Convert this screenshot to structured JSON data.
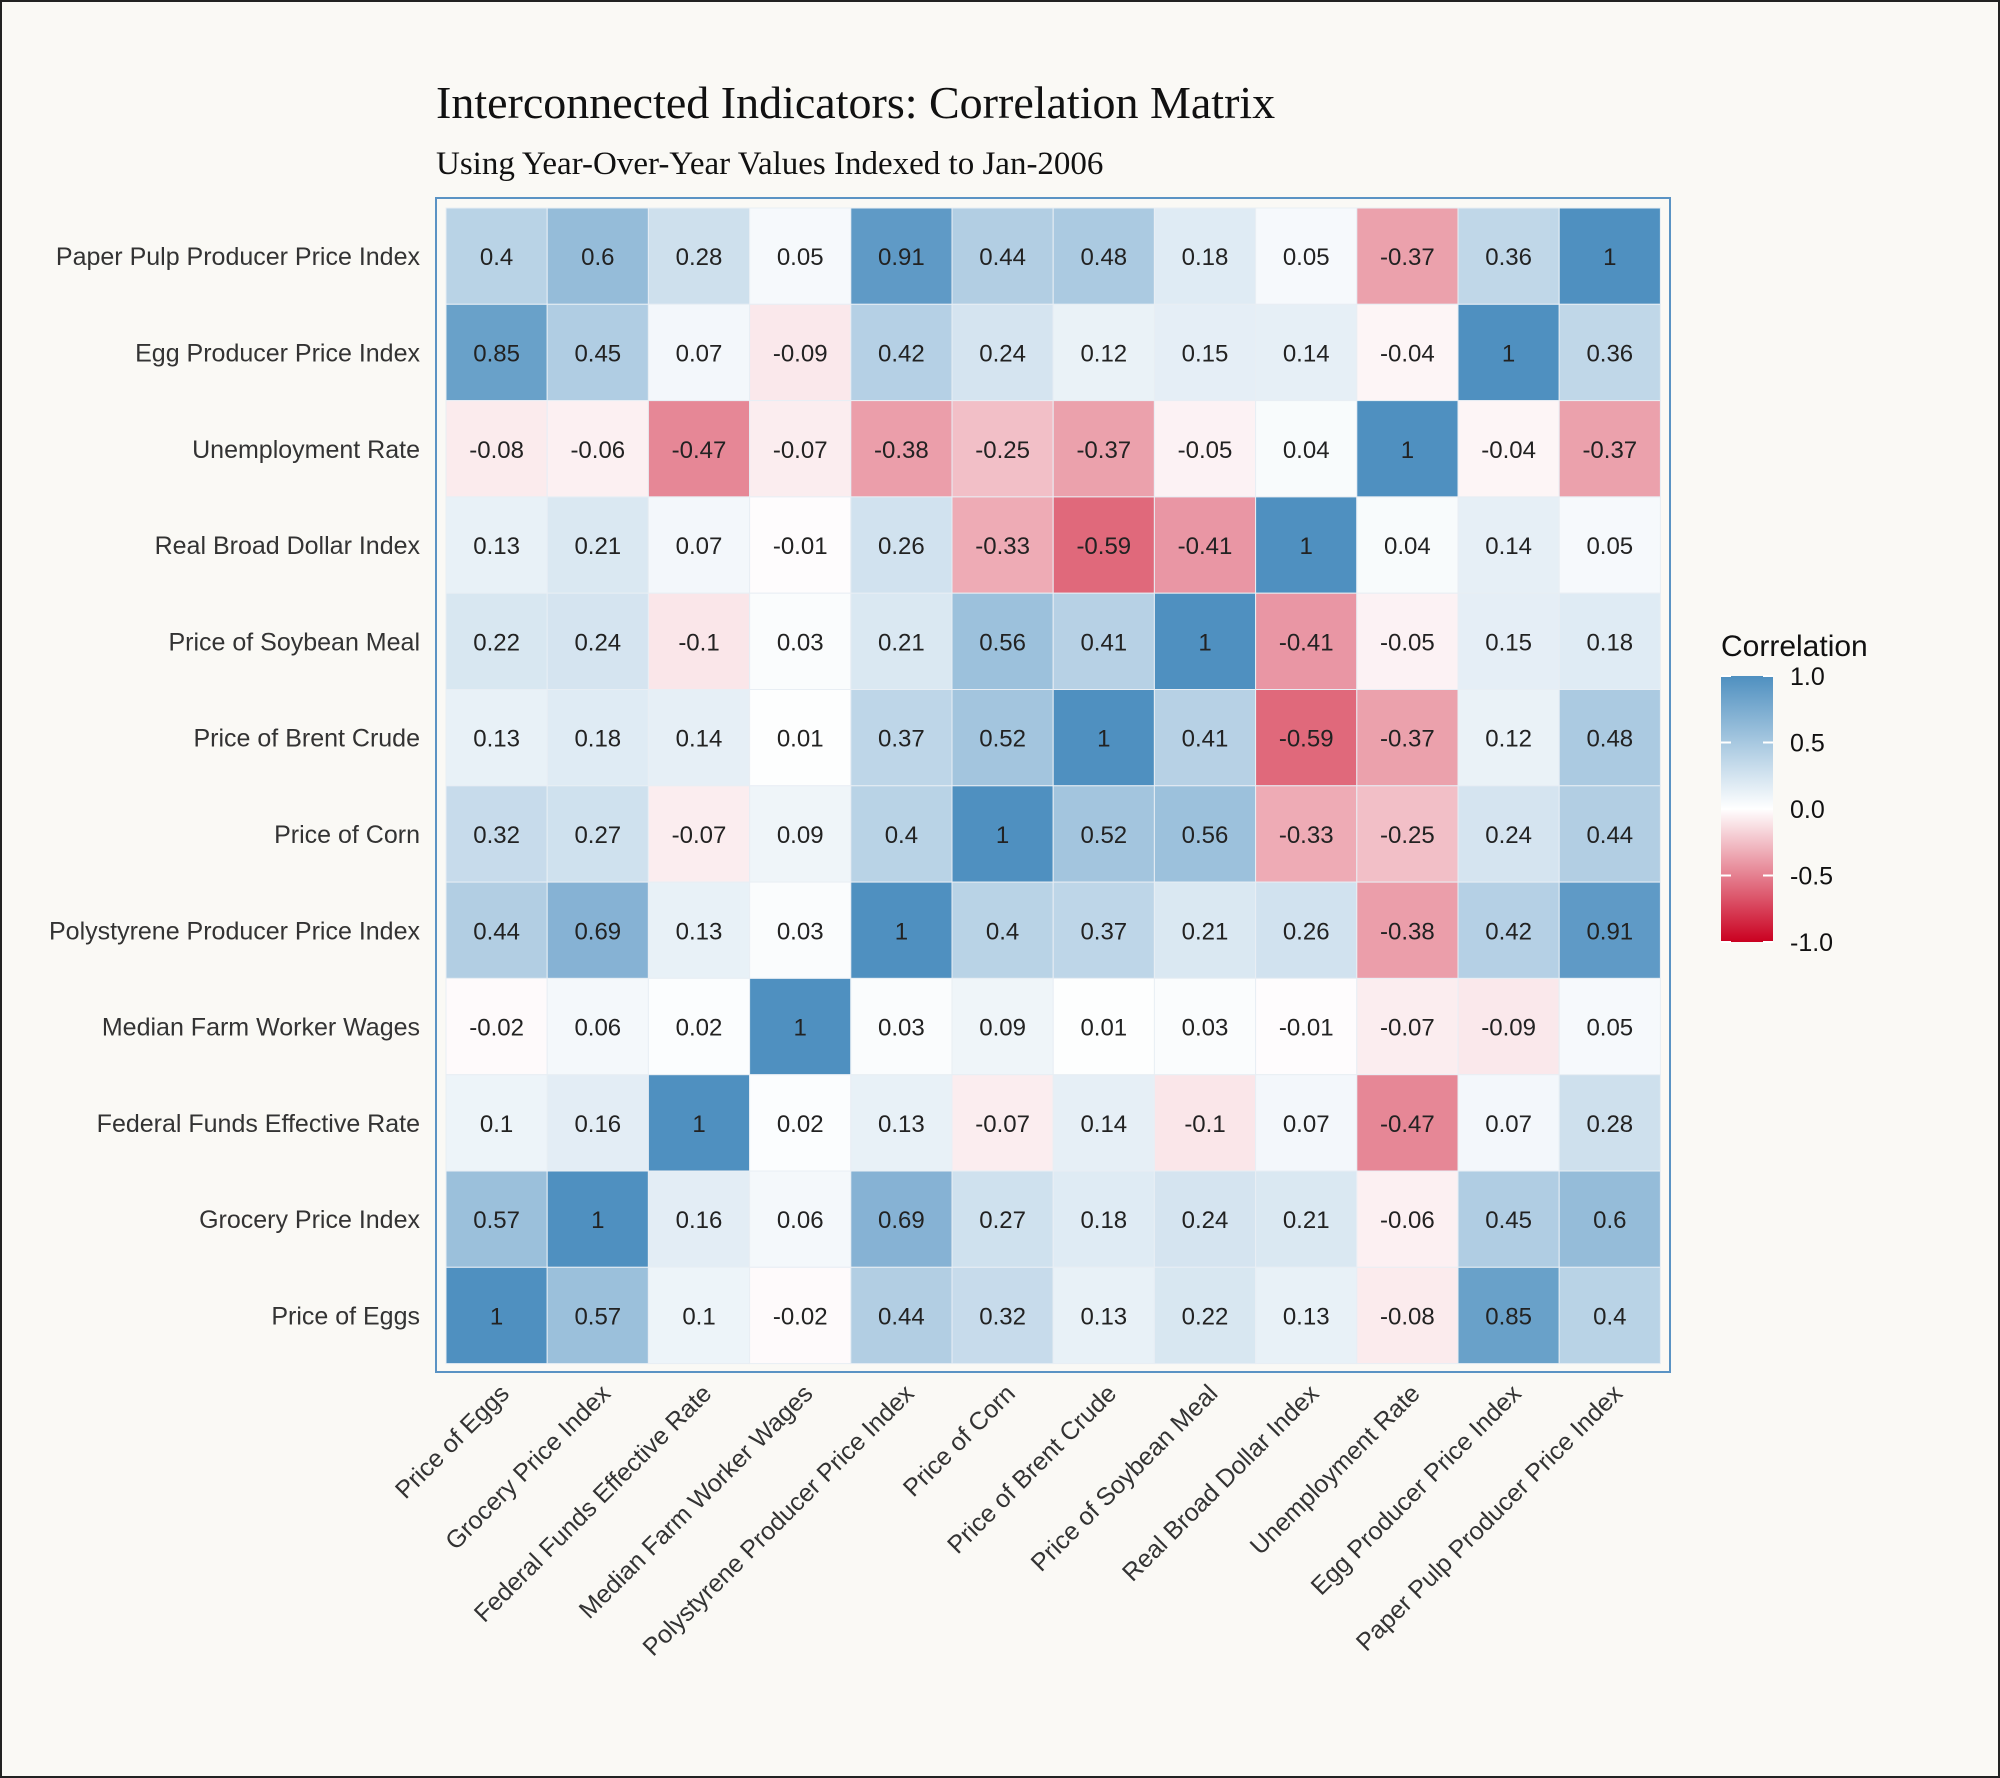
{
  "chart_data": {
    "type": "heatmap",
    "title": "Interconnected Indicators: Correlation Matrix",
    "subtitle": "Using Year-Over-Year Values Indexed to Jan-2006",
    "variables": [
      "Price of Eggs",
      "Grocery Price Index",
      "Federal Funds Effective Rate",
      "Median Farm Worker Wages",
      "Polystyrene Producer Price Index",
      "Price of Corn",
      "Price of Brent Crude",
      "Price of Soybean Meal",
      "Real Broad Dollar Index",
      "Unemployment Rate",
      "Egg Producer Price Index",
      "Paper Pulp Producer Price Index"
    ],
    "matrix": [
      [
        1,
        0.57,
        0.1,
        -0.02,
        0.44,
        0.32,
        0.13,
        0.22,
        0.13,
        -0.08,
        0.85,
        0.4
      ],
      [
        0.57,
        1,
        0.16,
        0.06,
        0.69,
        0.27,
        0.18,
        0.24,
        0.21,
        -0.06,
        0.45,
        0.6
      ],
      [
        0.1,
        0.16,
        1,
        0.02,
        0.13,
        -0.07,
        0.14,
        -0.1,
        0.07,
        -0.47,
        0.07,
        0.28
      ],
      [
        -0.02,
        0.06,
        0.02,
        1,
        0.03,
        0.09,
        0.01,
        0.03,
        -0.01,
        -0.07,
        -0.09,
        0.05
      ],
      [
        0.44,
        0.69,
        0.13,
        0.03,
        1,
        0.4,
        0.37,
        0.21,
        0.26,
        -0.38,
        0.42,
        0.91
      ],
      [
        0.32,
        0.27,
        -0.07,
        0.09,
        0.4,
        1,
        0.52,
        0.56,
        -0.33,
        -0.25,
        0.24,
        0.44
      ],
      [
        0.13,
        0.18,
        0.14,
        0.01,
        0.37,
        0.52,
        1,
        0.41,
        -0.59,
        -0.37,
        0.12,
        0.48
      ],
      [
        0.22,
        0.24,
        -0.1,
        0.03,
        0.21,
        0.56,
        0.41,
        1,
        -0.41,
        -0.05,
        0.15,
        0.18
      ],
      [
        0.13,
        0.21,
        0.07,
        -0.01,
        0.26,
        -0.33,
        -0.59,
        -0.41,
        1,
        0.04,
        0.14,
        0.05
      ],
      [
        -0.08,
        -0.06,
        -0.47,
        -0.07,
        -0.38,
        -0.25,
        -0.37,
        -0.05,
        0.04,
        1,
        -0.04,
        -0.37
      ],
      [
        0.85,
        0.45,
        0.07,
        -0.09,
        0.42,
        0.24,
        0.12,
        0.15,
        0.14,
        -0.04,
        1,
        0.36
      ],
      [
        0.4,
        0.6,
        0.28,
        0.05,
        0.91,
        0.44,
        0.48,
        0.18,
        0.05,
        -0.37,
        0.36,
        1
      ]
    ],
    "legend": {
      "title": "Correlation",
      "ticks": [
        "1.0",
        "0.5",
        "0.0",
        "-0.5",
        "-1.0"
      ],
      "range": [
        -1,
        1
      ],
      "placement": "right"
    },
    "colors": {
      "low": "#ca0020",
      "mid": "#ffffff",
      "high": "#4f90c0",
      "panel_border": "#5a93c4",
      "background": "#faf9f5"
    }
  }
}
